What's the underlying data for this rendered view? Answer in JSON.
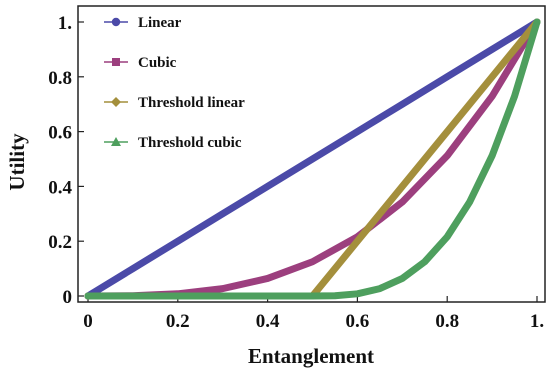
{
  "chart_data": {
    "type": "line",
    "xlabel": "Entanglement",
    "ylabel": "Utility",
    "xlim": [
      0,
      1
    ],
    "ylim": [
      0,
      1
    ],
    "x_ticks": [
      {
        "value": 0,
        "label": "0"
      },
      {
        "value": 0.2,
        "label": "0.2"
      },
      {
        "value": 0.4,
        "label": "0.4"
      },
      {
        "value": 0.6,
        "label": "0.6"
      },
      {
        "value": 0.8,
        "label": "0.8"
      },
      {
        "value": 1,
        "label": "1."
      }
    ],
    "y_ticks": [
      {
        "value": 0,
        "label": "0"
      },
      {
        "value": 0.2,
        "label": "0.2"
      },
      {
        "value": 0.4,
        "label": "0.4"
      },
      {
        "value": 0.6,
        "label": "0.6"
      },
      {
        "value": 0.8,
        "label": "0.8"
      },
      {
        "value": 1,
        "label": "1."
      }
    ],
    "legend_position": "top-left",
    "grid": false,
    "series": [
      {
        "name": "Linear",
        "color": "#4b4aa8",
        "marker": "circle",
        "x": [
          0,
          0.1,
          0.2,
          0.3,
          0.4,
          0.5,
          0.6,
          0.7,
          0.8,
          0.9,
          1.0
        ],
        "y": [
          0,
          0.1,
          0.2,
          0.3,
          0.4,
          0.5,
          0.6,
          0.7,
          0.8,
          0.9,
          1.0
        ]
      },
      {
        "name": "Cubic",
        "color": "#9c3f7e",
        "marker": "square",
        "x": [
          0,
          0.1,
          0.2,
          0.3,
          0.4,
          0.5,
          0.6,
          0.7,
          0.8,
          0.9,
          1.0
        ],
        "y": [
          0,
          0.001,
          0.008,
          0.027,
          0.064,
          0.125,
          0.216,
          0.343,
          0.512,
          0.729,
          1.0
        ]
      },
      {
        "name": "Threshold linear",
        "color": "#a48f3c",
        "marker": "diamond",
        "x": [
          0,
          0.5,
          0.6,
          0.7,
          0.8,
          0.9,
          1.0
        ],
        "y": [
          0,
          0,
          0.2,
          0.4,
          0.6,
          0.8,
          1.0
        ]
      },
      {
        "name": "Threshold cubic",
        "color": "#4e9f5e",
        "marker": "triangle",
        "x": [
          0,
          0.5,
          0.55,
          0.6,
          0.65,
          0.7,
          0.75,
          0.8,
          0.85,
          0.9,
          0.95,
          1.0
        ],
        "y": [
          0,
          0,
          0.001,
          0.008,
          0.027,
          0.064,
          0.125,
          0.216,
          0.343,
          0.512,
          0.729,
          1.0
        ]
      }
    ]
  }
}
